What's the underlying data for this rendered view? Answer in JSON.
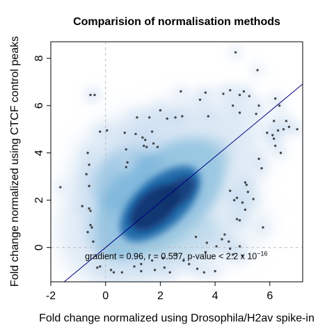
{
  "chart_data": {
    "type": "scatter",
    "title": "Comparision of normalisation methods",
    "xlabel": "Fold change normalized using Drosophila/H2av spike-in",
    "ylabel": "Fold change normalized using CTCF control peaks",
    "xlim": [
      -2,
      7.2
    ],
    "ylim": [
      -1.45,
      8.7
    ],
    "xticks": [
      -2,
      0,
      2,
      4,
      6
    ],
    "yticks": [
      0,
      2,
      4,
      6,
      8
    ],
    "xtick_labels": [
      "-2",
      "0",
      "2",
      "4",
      "6"
    ],
    "ytick_labels": [
      "0",
      "2",
      "4",
      "6",
      "8"
    ],
    "grid": false,
    "style": "smoothScatter density",
    "reference_lines": {
      "x": 0,
      "y": 0
    },
    "regression_line": {
      "slope": 0.96,
      "intercept": -0.0
    },
    "annotation": {
      "text": "gradient = 0.96, r = 0.557, p-value < 2.2 x 10",
      "superscript": "−16",
      "x": -0.75,
      "y": -0.38
    },
    "density_color": "#08306b",
    "line_color": "#000080",
    "outliers": [
      {
        "x": 4.75,
        "y": 8.25
      },
      {
        "x": 5.55,
        "y": 7.5
      },
      {
        "x": -0.55,
        "y": 6.45
      },
      {
        "x": -0.4,
        "y": 6.45
      },
      {
        "x": 2.75,
        "y": 6.6
      },
      {
        "x": 3.45,
        "y": 6.25
      },
      {
        "x": 3.65,
        "y": 6.55
      },
      {
        "x": 4.3,
        "y": 6.5
      },
      {
        "x": 4.55,
        "y": 6.65
      },
      {
        "x": 4.9,
        "y": 6.45
      },
      {
        "x": 5.05,
        "y": 6.6
      },
      {
        "x": 5.25,
        "y": 6.4
      },
      {
        "x": 6.2,
        "y": 6.3
      },
      {
        "x": 4.65,
        "y": 6.0
      },
      {
        "x": 5.6,
        "y": 6.0
      },
      {
        "x": 6.35,
        "y": 6.0
      },
      {
        "x": 4.9,
        "y": 5.7
      },
      {
        "x": 5.5,
        "y": 5.65
      },
      {
        "x": 2.0,
        "y": 5.8
      },
      {
        "x": 2.55,
        "y": 5.5
      },
      {
        "x": 2.8,
        "y": 5.55
      },
      {
        "x": 1.6,
        "y": 5.5
      },
      {
        "x": 2.25,
        "y": 5.45
      },
      {
        "x": 1.15,
        "y": 5.5
      },
      {
        "x": 3.75,
        "y": 5.55
      },
      {
        "x": 6.15,
        "y": 5.35
      },
      {
        "x": 6.6,
        "y": 5.35
      },
      {
        "x": 6.7,
        "y": 5.1
      },
      {
        "x": 6.5,
        "y": 5.0
      },
      {
        "x": 7.0,
        "y": 5.0
      },
      {
        "x": 6.3,
        "y": 4.95
      },
      {
        "x": 5.9,
        "y": 4.85
      },
      {
        "x": 6.1,
        "y": 4.75
      },
      {
        "x": -0.2,
        "y": 4.9
      },
      {
        "x": 0.05,
        "y": 4.95
      },
      {
        "x": 1.7,
        "y": 4.9
      },
      {
        "x": 1.1,
        "y": 4.8
      },
      {
        "x": 0.7,
        "y": 4.85
      },
      {
        "x": 1.35,
        "y": 4.65
      },
      {
        "x": 1.45,
        "y": 4.55
      },
      {
        "x": 1.5,
        "y": 4.25
      },
      {
        "x": 1.75,
        "y": 4.4
      },
      {
        "x": 1.4,
        "y": 4.3
      },
      {
        "x": 1.9,
        "y": 4.25
      },
      {
        "x": 0.75,
        "y": 4.15
      },
      {
        "x": 6.15,
        "y": 4.6
      },
      {
        "x": 6.2,
        "y": 4.3
      },
      {
        "x": 6.4,
        "y": 4.0
      },
      {
        "x": -0.65,
        "y": 4.0
      },
      {
        "x": 0.8,
        "y": 3.6
      },
      {
        "x": 0.75,
        "y": 3.4
      },
      {
        "x": 5.6,
        "y": 3.75
      },
      {
        "x": 5.7,
        "y": 3.35
      },
      {
        "x": -0.6,
        "y": 3.5
      },
      {
        "x": -0.7,
        "y": 3.1
      },
      {
        "x": -1.65,
        "y": 2.55
      },
      {
        "x": -0.6,
        "y": 2.6
      },
      {
        "x": 5.1,
        "y": 2.75
      },
      {
        "x": 5.15,
        "y": 2.65
      },
      {
        "x": 5.2,
        "y": 2.35
      },
      {
        "x": 5.4,
        "y": 2.05
      },
      {
        "x": -0.85,
        "y": 1.75
      },
      {
        "x": -0.6,
        "y": 1.65
      },
      {
        "x": -0.55,
        "y": 1.55
      },
      {
        "x": 4.55,
        "y": 2.4
      },
      {
        "x": 4.8,
        "y": 2.1
      },
      {
        "x": 4.7,
        "y": 2.0
      },
      {
        "x": 5.0,
        "y": 1.9
      },
      {
        "x": 5.1,
        "y": 1.6
      },
      {
        "x": 4.8,
        "y": 1.2
      },
      {
        "x": 4.9,
        "y": 1.15
      },
      {
        "x": 5.75,
        "y": 0.85
      },
      {
        "x": -0.55,
        "y": 0.95
      },
      {
        "x": -0.65,
        "y": 0.65
      },
      {
        "x": -0.5,
        "y": 0.85
      },
      {
        "x": -0.45,
        "y": 0.25
      },
      {
        "x": 4.35,
        "y": 0.55
      },
      {
        "x": 4.25,
        "y": 0.35
      },
      {
        "x": 4.5,
        "y": 0.25
      },
      {
        "x": 4.05,
        "y": 0.05
      },
      {
        "x": 3.7,
        "y": 0.2
      },
      {
        "x": 3.3,
        "y": 0.45
      },
      {
        "x": 4.55,
        "y": -0.05
      },
      {
        "x": 4.9,
        "y": 0.05
      },
      {
        "x": 3.65,
        "y": -0.2
      },
      {
        "x": 4.65,
        "y": -0.3
      },
      {
        "x": 5.0,
        "y": -0.35
      },
      {
        "x": 2.6,
        "y": -0.3
      },
      {
        "x": 2.1,
        "y": -0.45
      },
      {
        "x": 1.7,
        "y": -0.55
      },
      {
        "x": 1.3,
        "y": -0.7
      },
      {
        "x": 1.8,
        "y": -0.95
      },
      {
        "x": 1.3,
        "y": -1.0
      },
      {
        "x": 0.2,
        "y": -0.95
      },
      {
        "x": 0.6,
        "y": -1.05
      },
      {
        "x": 0.3,
        "y": -1.05
      },
      {
        "x": -0.2,
        "y": -0.8
      },
      {
        "x": -0.3,
        "y": -0.85
      },
      {
        "x": 3.05,
        "y": -0.7
      },
      {
        "x": 3.35,
        "y": -0.9
      },
      {
        "x": 4.0,
        "y": -1.0
      },
      {
        "x": 3.6,
        "y": -1.05
      },
      {
        "x": 2.35,
        "y": -1.05
      },
      {
        "x": 2.15,
        "y": -0.85
      },
      {
        "x": 1.05,
        "y": -0.8
      },
      {
        "x": 2.85,
        "y": -0.55
      }
    ]
  }
}
